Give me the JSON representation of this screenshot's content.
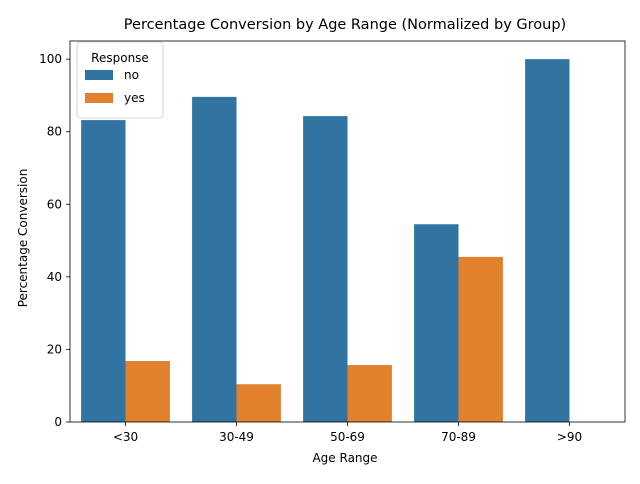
{
  "chart_data": {
    "type": "bar",
    "title": "Percentage Conversion by Age Range (Normalized by Group)",
    "xlabel": "Age Range",
    "ylabel": "Percentage Conversion",
    "categories": [
      "<30",
      "30-49",
      "50-69",
      "70-89",
      ">90"
    ],
    "series": [
      {
        "name": "no",
        "color": "#3274a1",
        "values": [
          83.2,
          89.6,
          84.3,
          54.5,
          100.0
        ]
      },
      {
        "name": "yes",
        "color": "#e1812c",
        "values": [
          16.8,
          10.4,
          15.7,
          45.5,
          0.0
        ]
      }
    ],
    "ylim": [
      0,
      105
    ],
    "yticks": [
      0,
      20,
      40,
      60,
      80,
      100
    ],
    "legend": {
      "title": "Response",
      "placement": "top-left"
    },
    "grid": false
  }
}
